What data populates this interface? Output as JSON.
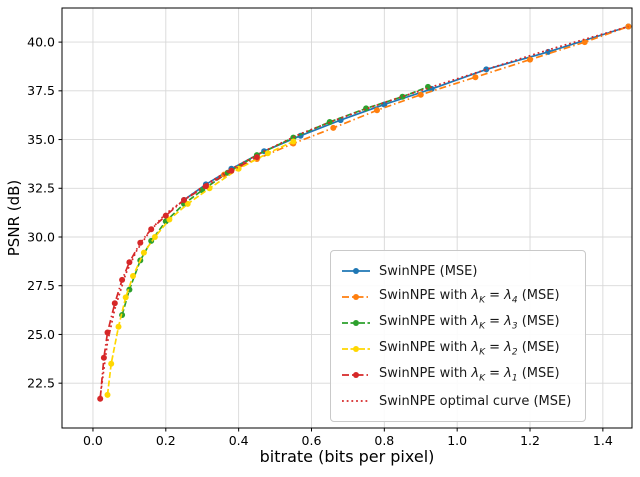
{
  "figure": {
    "background": "#ffffff"
  },
  "chart_data": {
    "type": "line",
    "title": "",
    "xlabel": "bitrate (bits per pixel)",
    "ylabel": "PSNR (dB)",
    "xlim": [
      -0.085,
      1.48
    ],
    "ylim": [
      20.2,
      41.75
    ],
    "xticks": [
      0.0,
      0.2,
      0.4,
      0.6,
      0.8,
      1.0,
      1.2,
      1.4
    ],
    "yticks": [
      22.5,
      25.0,
      27.5,
      30.0,
      32.5,
      35.0,
      37.5,
      40.0
    ],
    "grid": true,
    "grid_color": "#d8d8d8",
    "legend_position": "lower right",
    "series": [
      {
        "name": "SwinNPE (MSE)",
        "color": "#1f77b4",
        "linestyle": "solid",
        "marker": "circle",
        "points": [
          [
            0.25,
            31.9
          ],
          [
            0.31,
            32.7
          ],
          [
            0.38,
            33.5
          ],
          [
            0.47,
            34.4
          ],
          [
            0.57,
            35.2
          ],
          [
            0.68,
            36.0
          ],
          [
            0.8,
            36.8
          ],
          [
            0.93,
            37.6
          ],
          [
            1.08,
            38.6
          ],
          [
            1.25,
            39.5
          ],
          [
            1.47,
            40.8
          ]
        ]
      },
      {
        "name": "SwinNPE with λ_K = λ_4 (MSE)",
        "color": "#ff7f0e",
        "linestyle": "dashdot",
        "marker": "circle",
        "points": [
          [
            0.36,
            33.2
          ],
          [
            0.45,
            34.0
          ],
          [
            0.55,
            34.8
          ],
          [
            0.66,
            35.6
          ],
          [
            0.78,
            36.5
          ],
          [
            0.9,
            37.3
          ],
          [
            1.05,
            38.2
          ],
          [
            1.2,
            39.1
          ],
          [
            1.35,
            40.0
          ],
          [
            1.47,
            40.8
          ]
        ]
      },
      {
        "name": "SwinNPE with λ_K = λ_3 (MSE)",
        "color": "#2ca02c",
        "linestyle": "dashed",
        "marker": "circle",
        "points": [
          [
            0.08,
            26.0
          ],
          [
            0.1,
            27.3
          ],
          [
            0.13,
            28.8
          ],
          [
            0.16,
            29.8
          ],
          [
            0.2,
            30.8
          ],
          [
            0.25,
            31.7
          ],
          [
            0.3,
            32.4
          ],
          [
            0.37,
            33.3
          ],
          [
            0.45,
            34.2
          ],
          [
            0.55,
            35.1
          ],
          [
            0.65,
            35.9
          ],
          [
            0.75,
            36.6
          ],
          [
            0.85,
            37.2
          ],
          [
            0.92,
            37.7
          ]
        ]
      },
      {
        "name": "SwinNPE with λ_K = λ_2 (MSE)",
        "color": "#ffd700",
        "linestyle": "dashed",
        "marker": "circle",
        "points": [
          [
            0.04,
            21.9
          ],
          [
            0.05,
            23.5
          ],
          [
            0.07,
            25.4
          ],
          [
            0.09,
            26.9
          ],
          [
            0.11,
            28.0
          ],
          [
            0.14,
            29.2
          ],
          [
            0.17,
            30.0
          ],
          [
            0.21,
            30.9
          ],
          [
            0.26,
            31.7
          ],
          [
            0.32,
            32.5
          ],
          [
            0.4,
            33.5
          ],
          [
            0.48,
            34.3
          ],
          [
            0.55,
            34.9
          ]
        ]
      },
      {
        "name": "SwinNPE with λ_K = λ_1 (MSE)",
        "color": "#d62728",
        "linestyle": "dashdot",
        "marker": "circle",
        "points": [
          [
            0.02,
            21.7
          ],
          [
            0.03,
            23.8
          ],
          [
            0.04,
            25.1
          ],
          [
            0.06,
            26.6
          ],
          [
            0.08,
            27.8
          ],
          [
            0.1,
            28.7
          ],
          [
            0.13,
            29.7
          ],
          [
            0.16,
            30.4
          ],
          [
            0.2,
            31.1
          ],
          [
            0.25,
            31.9
          ],
          [
            0.31,
            32.6
          ],
          [
            0.38,
            33.4
          ],
          [
            0.45,
            34.1
          ]
        ]
      },
      {
        "name": "SwinNPE optimal curve (MSE)",
        "color": "#d62728",
        "linestyle": "dotted",
        "marker": "none",
        "points": [
          [
            0.02,
            21.8
          ],
          [
            0.04,
            24.6
          ],
          [
            0.06,
            26.3
          ],
          [
            0.09,
            28.1
          ],
          [
            0.12,
            29.3
          ],
          [
            0.16,
            30.4
          ],
          [
            0.2,
            31.2
          ],
          [
            0.25,
            31.9
          ],
          [
            0.31,
            32.7
          ],
          [
            0.38,
            33.5
          ],
          [
            0.47,
            34.4
          ],
          [
            0.57,
            35.3
          ],
          [
            0.68,
            36.1
          ],
          [
            0.8,
            36.9
          ],
          [
            0.93,
            37.7
          ],
          [
            1.08,
            38.6
          ],
          [
            1.25,
            39.6
          ],
          [
            1.47,
            40.8
          ]
        ]
      }
    ]
  }
}
